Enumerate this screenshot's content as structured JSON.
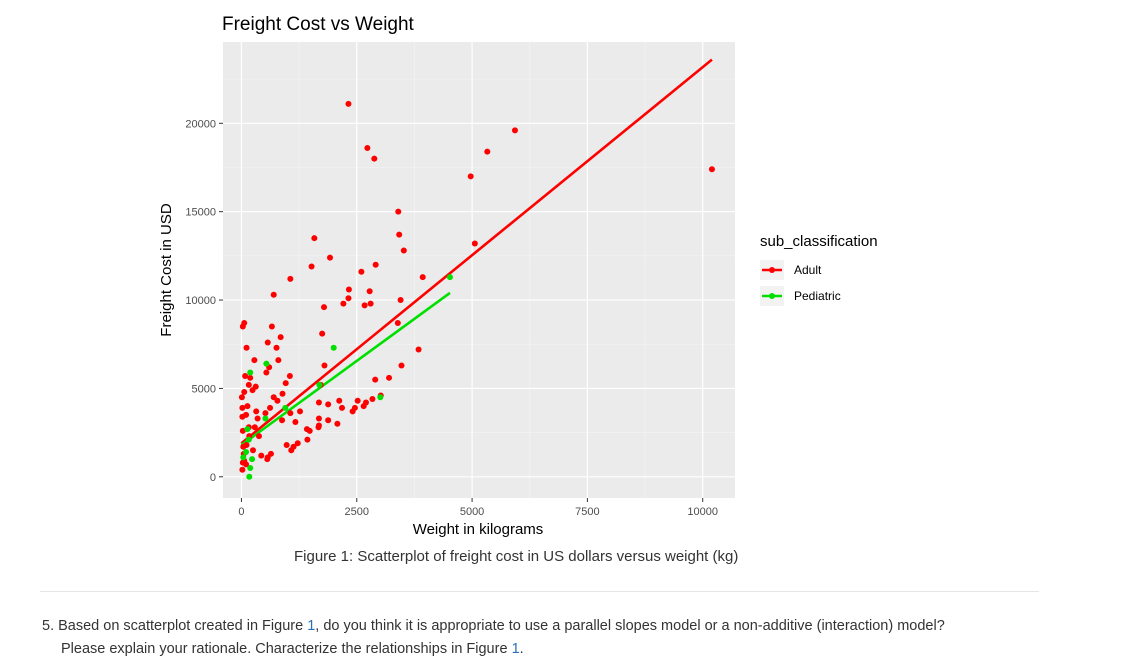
{
  "chart_data": {
    "type": "scatter",
    "title": "Freight Cost vs Weight",
    "xlabel": "Weight in kilograms",
    "ylabel": "Freight Cost in USD",
    "xlim": [
      -400,
      10700
    ],
    "ylim": [
      -1200,
      24600
    ],
    "x_ticks": [
      0,
      2500,
      5000,
      7500,
      10000
    ],
    "x_tick_labels": [
      "0",
      "2500",
      "5000",
      "7500",
      "10000"
    ],
    "y_ticks": [
      0,
      5000,
      10000,
      15000,
      20000
    ],
    "y_tick_labels": [
      "0",
      "5000",
      "10000",
      "15000",
      "20000"
    ],
    "grid": true,
    "panel_background": "#ebebeb",
    "legend": {
      "title": "sub_classification",
      "placement": "right",
      "entries": [
        "Adult",
        "Pediatric"
      ]
    },
    "series": [
      {
        "name": "Adult",
        "color": "#ff0000",
        "points": [
          [
            2320,
            21100
          ],
          [
            2730,
            18600
          ],
          [
            2880,
            18000
          ],
          [
            5930,
            19600
          ],
          [
            5330,
            18400
          ],
          [
            4970,
            17000
          ],
          [
            10200,
            17400
          ],
          [
            3400,
            15000
          ],
          [
            3420,
            13700
          ],
          [
            1580,
            13500
          ],
          [
            3520,
            12800
          ],
          [
            5060,
            13200
          ],
          [
            1920,
            12400
          ],
          [
            1520,
            11900
          ],
          [
            2910,
            12000
          ],
          [
            2600,
            11600
          ],
          [
            3930,
            11300
          ],
          [
            1060,
            11200
          ],
          [
            2330,
            10600
          ],
          [
            2780,
            10500
          ],
          [
            2320,
            10100
          ],
          [
            3450,
            10000
          ],
          [
            2210,
            9800
          ],
          [
            1790,
            9600
          ],
          [
            2670,
            9700
          ],
          [
            2800,
            9800
          ],
          [
            700,
            10300
          ],
          [
            60,
            8700
          ],
          [
            30,
            8500
          ],
          [
            3390,
            8700
          ],
          [
            660,
            8500
          ],
          [
            1750,
            8100
          ],
          [
            850,
            7900
          ],
          [
            3840,
            7200
          ],
          [
            570,
            7600
          ],
          [
            760,
            7300
          ],
          [
            110,
            7300
          ],
          [
            800,
            6600
          ],
          [
            600,
            6200
          ],
          [
            280,
            6600
          ],
          [
            3470,
            6300
          ],
          [
            1800,
            6300
          ],
          [
            80,
            5700
          ],
          [
            190,
            5600
          ],
          [
            540,
            5900
          ],
          [
            160,
            5200
          ],
          [
            310,
            5100
          ],
          [
            960,
            5300
          ],
          [
            1050,
            5700
          ],
          [
            2900,
            5500
          ],
          [
            3200,
            5600
          ],
          [
            60,
            4800
          ],
          [
            240,
            4900
          ],
          [
            890,
            4700
          ],
          [
            1720,
            5200
          ],
          [
            10,
            4500
          ],
          [
            700,
            4500
          ],
          [
            780,
            4300
          ],
          [
            1680,
            4200
          ],
          [
            1880,
            4100
          ],
          [
            2120,
            4300
          ],
          [
            2520,
            4300
          ],
          [
            2840,
            4400
          ],
          [
            2700,
            4200
          ],
          [
            3020,
            4600
          ],
          [
            2650,
            4000
          ],
          [
            2410,
            3700
          ],
          [
            2460,
            3900
          ],
          [
            20,
            3900
          ],
          [
            130,
            4000
          ],
          [
            320,
            3700
          ],
          [
            520,
            3600
          ],
          [
            620,
            3900
          ],
          [
            1060,
            3600
          ],
          [
            1270,
            3700
          ],
          [
            20,
            3400
          ],
          [
            100,
            3500
          ],
          [
            350,
            3300
          ],
          [
            880,
            3200
          ],
          [
            1680,
            3300
          ],
          [
            1880,
            3200
          ],
          [
            2180,
            3900
          ],
          [
            1420,
            2700
          ],
          [
            1670,
            2800
          ],
          [
            290,
            2800
          ],
          [
            160,
            2800
          ],
          [
            30,
            2600
          ],
          [
            170,
            2300
          ],
          [
            380,
            2300
          ],
          [
            1170,
            3100
          ],
          [
            1480,
            2600
          ],
          [
            1680,
            2900
          ],
          [
            2080,
            3000
          ],
          [
            980,
            1800
          ],
          [
            1130,
            1700
          ],
          [
            1220,
            1900
          ],
          [
            1430,
            2100
          ],
          [
            40,
            1700
          ],
          [
            50,
            1300
          ],
          [
            110,
            1800
          ],
          [
            250,
            1500
          ],
          [
            430,
            1200
          ],
          [
            560,
            1000
          ],
          [
            570,
            1100
          ],
          [
            60,
            900
          ],
          [
            100,
            700
          ],
          [
            20,
            400
          ],
          [
            30,
            800
          ],
          [
            1080,
            1500
          ],
          [
            640,
            1300
          ]
        ],
        "fit": {
          "x": [
            0,
            10200
          ],
          "y": [
            1900,
            23600
          ]
        }
      },
      {
        "name": "Pediatric",
        "color": "#00e000",
        "points": [
          [
            4520,
            11300
          ],
          [
            2000,
            7300
          ],
          [
            190,
            5900
          ],
          [
            540,
            6400
          ],
          [
            1690,
            5200
          ],
          [
            3010,
            4500
          ],
          [
            950,
            3900
          ],
          [
            520,
            3300
          ],
          [
            130,
            2700
          ],
          [
            160,
            2100
          ],
          [
            100,
            1400
          ],
          [
            40,
            1100
          ],
          [
            190,
            500
          ],
          [
            230,
            1000
          ],
          [
            170,
            0
          ]
        ],
        "fit": {
          "x": [
            0,
            4520
          ],
          "y": [
            1800,
            10400
          ]
        }
      }
    ]
  },
  "caption": {
    "text": "Figure 1: Scatterplot of freight cost in US dollars versus weight (kg)"
  },
  "question": {
    "number": "5.",
    "line1_part1": "Based on scatterplot created in Figure ",
    "line1_ref": "1",
    "line1_part2": ", do you think it is appropriate to use a parallel slopes model or a non-additive (interaction) model?",
    "line2_part1": "Please explain your rationale. Characterize the relationships in Figure ",
    "line2_ref": "1",
    "line2_part2": "."
  }
}
